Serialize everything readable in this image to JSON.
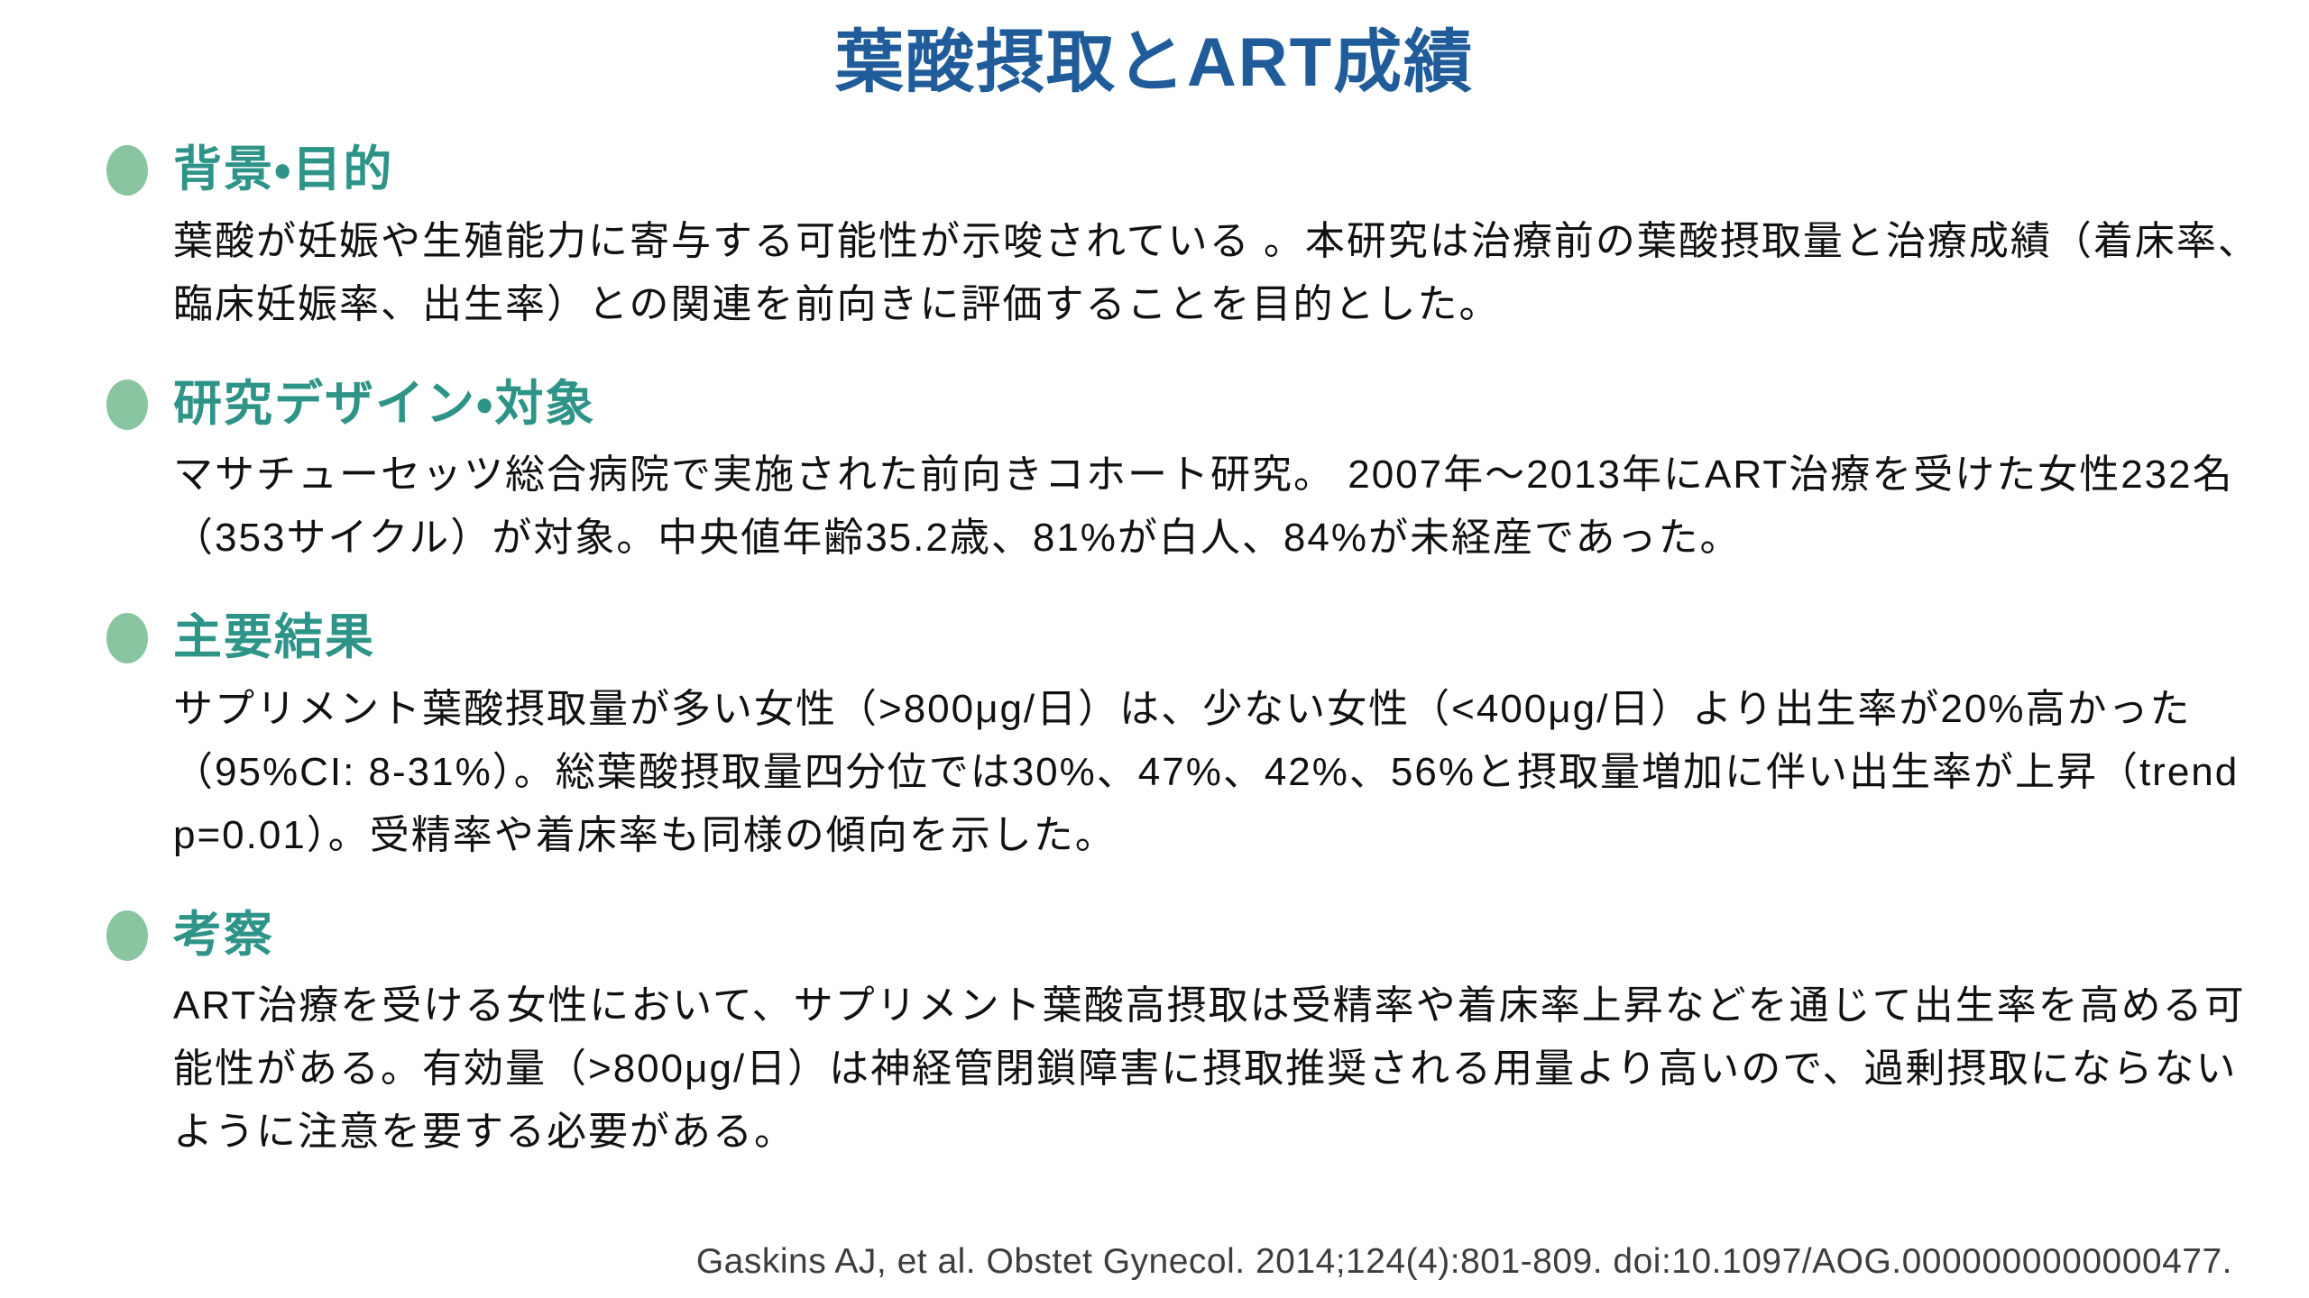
{
  "slide": {
    "title": "葉酸摂取とART成績",
    "sections": [
      {
        "heading": "背景・目的",
        "body": "葉酸が妊娠や生殖能力に寄与する可能性が示唆されている 。本研究は治療前の葉酸摂取量と治療成績（着床率、臨床妊娠率、出生率）との関連を前向きに評価することを目的とした。"
      },
      {
        "heading": "研究デザイン・対象",
        "body": "マサチューセッツ総合病院で実施された前向きコホート研究。 2007年〜2013年にART治療を受けた女性232名（353サイクル）が対象。中央値年齢35.2歳、81%が白人、84%が未経産であった。"
      },
      {
        "heading": "主要結果",
        "body": "サプリメント葉酸摂取量が多い女性（>800μg/日）は、少ない女性（<400μg/日）より出生率が20%高かった（95%CI: 8-31%）。総葉酸摂取量四分位では30%、47%、42%、56%と摂取量増加に伴い出生率が上昇（trend p=0.01）。受精率や着床率も同様の傾向を示した。"
      },
      {
        "heading": "考察",
        "body": "ART治療を受ける女性において、サプリメント葉酸高摂取は受精率や着床率上昇などを通じて出生率を高める可能性がある。有効量（>800μg/日）は神経管閉鎖障害に摂取推奨される用量より高いので、過剰摂取にならないように注意を要する必要がある。"
      }
    ],
    "citation": "Gaskins AJ, et al. Obstet Gynecol. 2014;124(4):801-809. doi:10.1097/AOG.0000000000000477.",
    "colors": {
      "title_blue": "#1F5C99",
      "heading_teal": "#2E9488",
      "bullet_green": "#8AC5A2",
      "body_text": "#111111",
      "citation_gray": "#3D3D3D"
    }
  }
}
